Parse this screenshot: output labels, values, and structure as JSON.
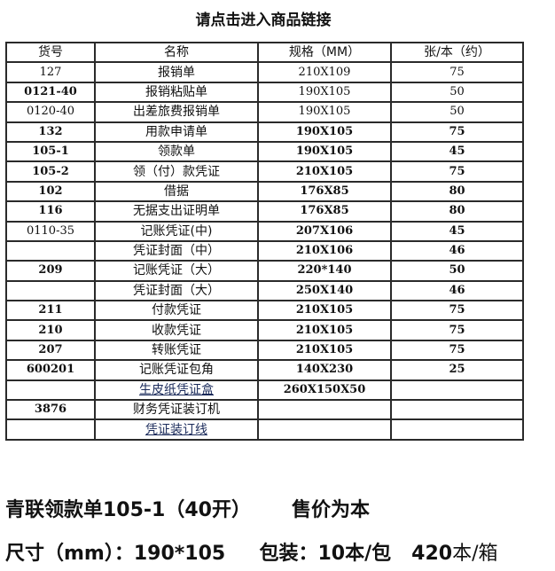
{
  "title": "请点击进入商品链接",
  "table": {
    "headers": [
      "货号",
      "名称",
      "规格（MM）",
      "张/本（约）"
    ],
    "rows": [
      {
        "code": "127",
        "name": "报销单",
        "size": "210X109",
        "count": "75"
      },
      {
        "code": "0121-40",
        "name": "报销粘贴单",
        "size": "190X105",
        "count": "50"
      },
      {
        "code": "0120-40",
        "name": "出差旅费报销单",
        "size": "190X105",
        "count": "50"
      },
      {
        "code": "132",
        "name": "用款申请单",
        "size": "190X105",
        "count": "75"
      },
      {
        "code": "105-1",
        "name": "领款单",
        "size": "190X105",
        "count": "45"
      },
      {
        "code": "105-2",
        "name": "领（付）款凭证",
        "size": "210X105",
        "count": "75"
      },
      {
        "code": "102",
        "name": "借据",
        "size": "176X85",
        "count": "80"
      },
      {
        "code": "116",
        "name": "无据支出证明单",
        "size": "176X85",
        "count": "80"
      },
      {
        "code": "0110-35",
        "name": "记账凭证(中)",
        "size": "207X106",
        "count": "45"
      },
      {
        "code": "",
        "name": "凭证封面（中）",
        "size": "210X106",
        "count": "46"
      },
      {
        "code": "209",
        "name": "记账凭证（大）",
        "size": "220*140",
        "count": "50"
      },
      {
        "code": "",
        "name": "凭证封面（大）",
        "size": "250X140",
        "count": "46"
      },
      {
        "code": "211",
        "name": "付款凭证",
        "size": "210X105",
        "count": "75"
      },
      {
        "code": "210",
        "name": "收款凭证",
        "size": "210X105",
        "count": "75"
      },
      {
        "code": "207",
        "name": "转账凭证",
        "size": "210X105",
        "count": "75"
      },
      {
        "code": "600201",
        "name": "记账凭证包角",
        "size": "140X230",
        "count": "25"
      },
      {
        "code": "",
        "name": "生皮纸凭证盒",
        "size": "260X150X50",
        "count": "",
        "link": true
      },
      {
        "code": "3876",
        "name": "财务凭证装订机",
        "size": "",
        "count": ""
      },
      {
        "code": "",
        "name": "凭证装订线",
        "size": "",
        "count": "",
        "link": true
      }
    ]
  },
  "product": {
    "name": "青联领款单105-1（40开）",
    "price_note": "售价为本",
    "size_label": "尺寸（mm）：190*105",
    "pack_label": "包装：10本/包",
    "box_qty": "420",
    "box_unit": "本/箱"
  }
}
